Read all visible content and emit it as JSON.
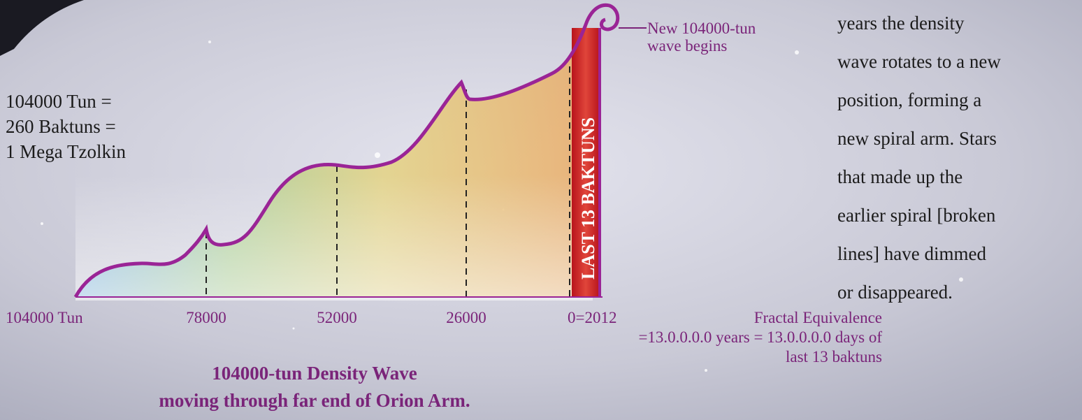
{
  "left_note": {
    "lines": [
      "104000 Tun =",
      "260 Baktuns =",
      "1 Mega Tzolkin"
    ]
  },
  "right_note": {
    "lines": [
      "years the density",
      "wave rotates to a new",
      "position, forming a",
      "new spiral arm. Stars",
      "that made up the",
      "earlier spiral [broken",
      "lines] have dimmed",
      "or disappeared."
    ]
  },
  "wave_callout": {
    "lines": [
      "New 104000-tun",
      "wave begins"
    ]
  },
  "bar_label": "LAST 13 BAKTUNS",
  "axis_labels": [
    "104000 Tun",
    "78000",
    "52000",
    "26000",
    "0=2012"
  ],
  "fractal_note": {
    "lines": [
      "Fractal Equivalence",
      "=13.0.0.0.0 years = 13.0.0.0.0 days of",
      "last 13 baktuns"
    ]
  },
  "title": {
    "lines": [
      "104000-tun Density Wave",
      "moving through far end of Orion Arm."
    ]
  }
}
